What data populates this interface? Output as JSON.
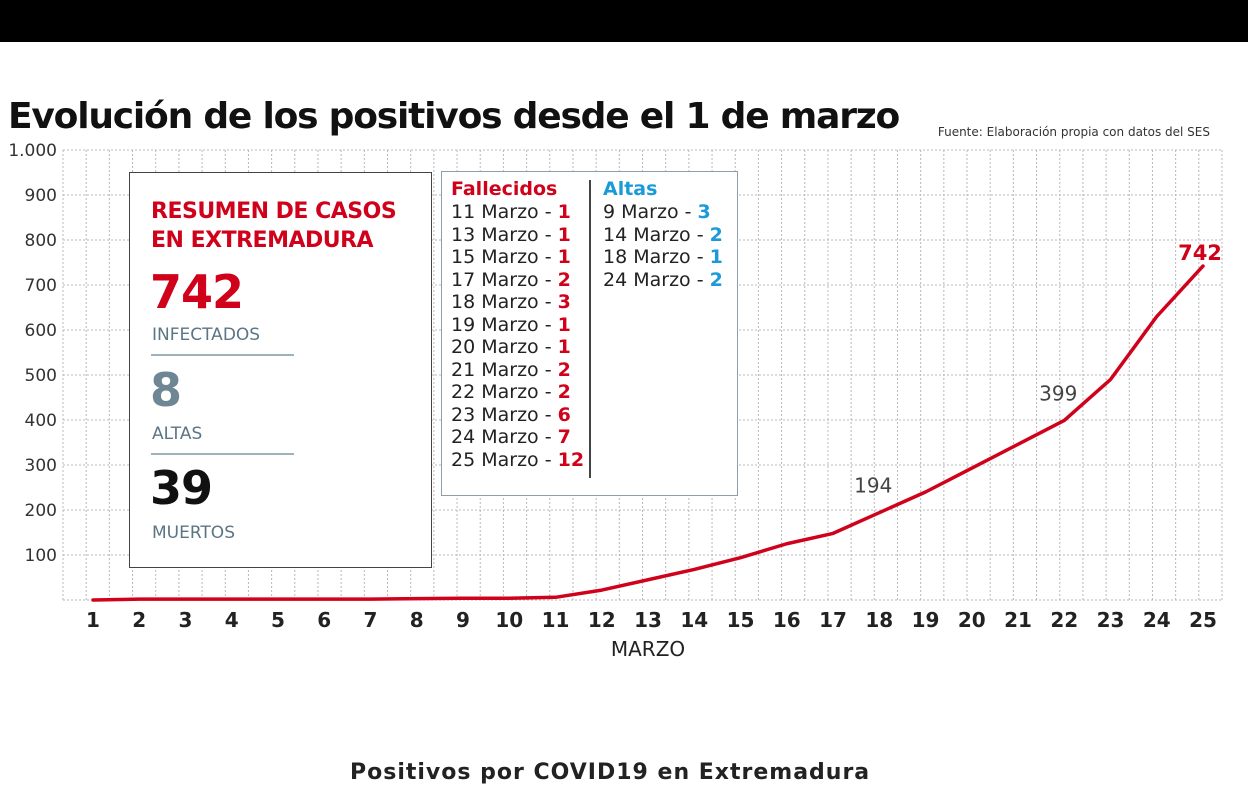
{
  "header": {
    "title": "Evolución de los positivos desde el 1 de marzo",
    "source": "Fuente: Elaboración propia con datos del SES"
  },
  "summary": {
    "heading": "RESUMEN DE CASOS EN EXTREMADURA",
    "infectados_value": "742",
    "infectados_label": "INFECTADOS",
    "altas_value": "8",
    "altas_label": "ALTAS",
    "muertos_value": "39",
    "muertos_label": "MUERTOS"
  },
  "fallecidos": {
    "title": "Fallecidos",
    "items": [
      {
        "date": "11 Marzo - ",
        "n": "1"
      },
      {
        "date": "13 Marzo - ",
        "n": "1"
      },
      {
        "date": "15 Marzo - ",
        "n": "1"
      },
      {
        "date": "17 Marzo - ",
        "n": "2"
      },
      {
        "date": "18 Marzo - ",
        "n": "3"
      },
      {
        "date": "19 Marzo - ",
        "n": "1"
      },
      {
        "date": "20 Marzo - ",
        "n": "1"
      },
      {
        "date": "21 Marzo - ",
        "n": "2"
      },
      {
        "date": "22 Marzo - ",
        "n": "2"
      },
      {
        "date": "23 Marzo - ",
        "n": "6"
      },
      {
        "date": "24 Marzo - ",
        "n": "7"
      },
      {
        "date": "25 Marzo - ",
        "n": "12"
      }
    ]
  },
  "altas": {
    "title": "Altas",
    "items": [
      {
        "date": "9 Marzo - ",
        "n": "3"
      },
      {
        "date": "14 Marzo - ",
        "n": "2"
      },
      {
        "date": "18 Marzo - ",
        "n": "1"
      },
      {
        "date": "24 Marzo - ",
        "n": "2"
      }
    ]
  },
  "colors": {
    "red": "#d0021b",
    "blue": "#1a9bd7",
    "grid": "#b8b8b8",
    "label_gray": "#5b7585"
  },
  "chart_data": {
    "type": "line",
    "title": "Evolución de los positivos desde el 1 de marzo",
    "xlabel": "MARZO",
    "ylabel": "",
    "x": [
      1,
      2,
      3,
      4,
      5,
      6,
      7,
      8,
      9,
      10,
      11,
      12,
      13,
      14,
      15,
      16,
      17,
      18,
      19,
      20,
      21,
      22,
      23,
      24,
      25
    ],
    "y_ticks": [
      "1.000",
      "900",
      "800",
      "700",
      "600",
      "500",
      "400",
      "300",
      "200",
      "100"
    ],
    "ylim": [
      0,
      1000
    ],
    "grid": true,
    "series": [
      {
        "values": [
          0,
          2,
          2,
          2,
          2,
          2,
          2,
          3,
          4,
          4,
          6,
          22,
          45,
          68,
          94,
          125,
          148,
          194,
          240,
          293,
          346,
          399,
          490,
          630,
          742
        ]
      }
    ],
    "annotations": [
      {
        "x": 18,
        "y": 194,
        "text": "194"
      },
      {
        "x": 22,
        "y": 399,
        "text": "399"
      },
      {
        "x": 25,
        "y": 742,
        "text": "742"
      }
    ]
  },
  "footer": {
    "cut_text": "Positivos por COVID19 en Extremadura"
  }
}
